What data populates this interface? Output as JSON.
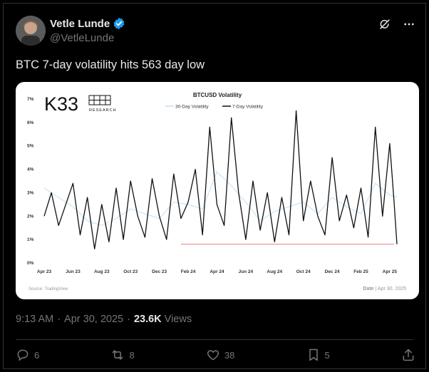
{
  "author": {
    "name": "Vetle Lunde",
    "handle": "@VetleLunde"
  },
  "post": {
    "text": "BTC 7-day volatility hits 563 day low"
  },
  "chart_header": {
    "logo": "K33",
    "logo_sub": "RESEARCH",
    "source": "Source: TradingView",
    "date_label": "Date",
    "date_value": "Apr 30, 2025"
  },
  "meta": {
    "time": "9:13 AM",
    "date": "Apr 30, 2025",
    "views_count": "23.6K",
    "views_label": "Views"
  },
  "actions": {
    "replies": "6",
    "reposts": "8",
    "likes": "38",
    "bookmarks": "5"
  },
  "colors": {
    "accent": "#1d9bf0",
    "series_30d": "#bfe0f7",
    "series_7d": "#111111",
    "low_line": "#e05555"
  },
  "icons": [
    "verified-badge-icon",
    "grok-icon",
    "more-icon",
    "reply-icon",
    "repost-icon",
    "like-icon",
    "bookmark-icon",
    "share-icon"
  ],
  "chart_data": {
    "type": "line",
    "title": "BTCUSD Volatility",
    "y_ticks": [
      "0%",
      "1%",
      "2%",
      "3%",
      "4%",
      "5%",
      "6%",
      "7%"
    ],
    "x_ticks": [
      "Apr 23",
      "Jun 23",
      "Aug 23",
      "Oct 23",
      "Dec 23",
      "Feb 24",
      "Apr 24",
      "Jun 24",
      "Aug 24",
      "Oct 24",
      "Dec 24",
      "Feb 25",
      "Apr 25"
    ],
    "ylim": [
      0,
      7
    ],
    "xlim": [
      0,
      24.5
    ],
    "grid": false,
    "legend": "top",
    "low_reference": 0.8,
    "series": [
      {
        "name": "30-Day Volatility",
        "x": [
          0,
          1,
          2,
          3,
          4,
          5,
          6,
          7,
          8,
          9,
          10,
          11,
          12,
          13,
          14,
          15,
          16,
          17,
          18,
          19,
          20,
          21,
          22,
          23,
          24,
          24.5
        ],
        "y": [
          3.2,
          2.8,
          2.4,
          1.8,
          1.6,
          1.9,
          2.3,
          2.1,
          1.9,
          2.6,
          2.5,
          2.3,
          3.9,
          3.3,
          2.6,
          1.8,
          2.2,
          2.4,
          2.6,
          2.1,
          2.8,
          2.4,
          2.1,
          3.4,
          2.9,
          2.8
        ]
      },
      {
        "name": "7-Day Volatility",
        "x": [
          0,
          0.5,
          1,
          1.5,
          2,
          2.5,
          3,
          3.5,
          4,
          4.5,
          5,
          5.5,
          6,
          6.5,
          7,
          7.5,
          8,
          8.5,
          9,
          9.5,
          10,
          10.5,
          11,
          11.5,
          12,
          12.5,
          13,
          13.5,
          14,
          14.5,
          15,
          15.5,
          16,
          16.5,
          17,
          17.5,
          18,
          18.5,
          19,
          19.5,
          20,
          20.5,
          21,
          21.5,
          22,
          22.5,
          23,
          23.5,
          24,
          24.3,
          24.5
        ],
        "y": [
          2.0,
          3.0,
          1.6,
          2.5,
          3.4,
          1.2,
          2.8,
          0.6,
          2.5,
          0.9,
          3.2,
          1.0,
          3.5,
          2.0,
          1.1,
          3.6,
          2.0,
          1.0,
          3.8,
          1.9,
          2.6,
          4.0,
          1.2,
          5.8,
          2.5,
          1.6,
          6.2,
          3.0,
          1.0,
          3.5,
          1.4,
          3.0,
          0.9,
          2.8,
          1.2,
          6.5,
          1.8,
          3.5,
          2.0,
          1.2,
          4.5,
          1.8,
          2.9,
          1.5,
          3.2,
          1.1,
          5.8,
          2.0,
          5.1,
          2.6,
          0.8
        ]
      }
    ]
  }
}
